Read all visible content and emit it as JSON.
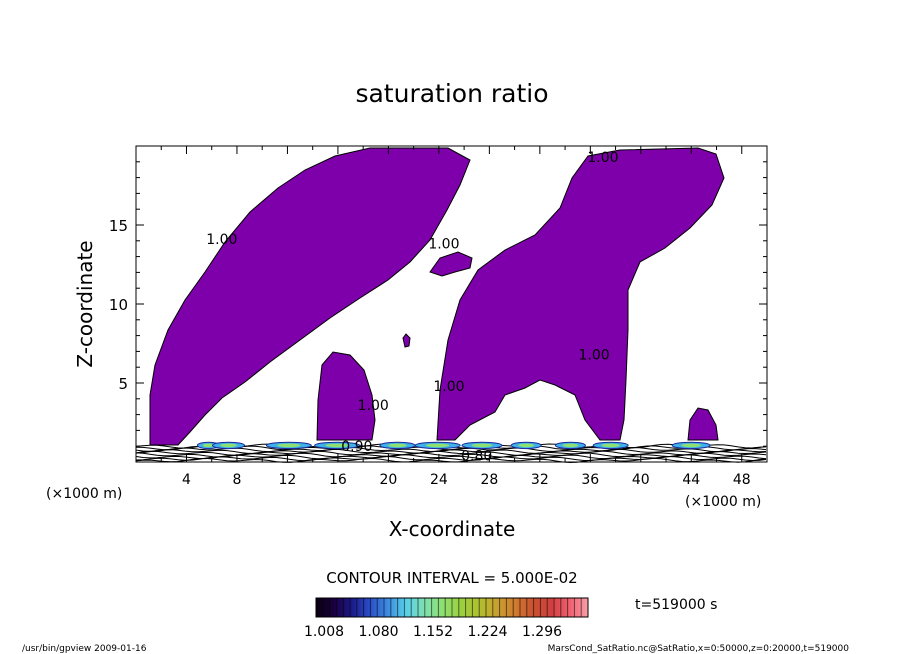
{
  "footer": {
    "left": "/usr/bin/gpview   2009-01-16",
    "right": "MarsCond_SatRatio.nc@SatRatio,x=0:50000,z=0:20000,t=519000"
  },
  "chart_data": {
    "type": "contour",
    "title": "saturation ratio",
    "xlabel": "X-coordinate",
    "ylabel": "Z-coordinate",
    "x_unit_left": "(×1000 m)",
    "x_unit_right": "(×1000 m)",
    "xlim": [
      0,
      50
    ],
    "ylim": [
      0,
      20
    ],
    "x_ticks": [
      4,
      8,
      12,
      16,
      20,
      24,
      28,
      32,
      36,
      40,
      44,
      48
    ],
    "y_ticks": [
      5,
      10,
      15
    ],
    "contour_interval_text": "CONTOUR INTERVAL = 5.000E-02",
    "time_text": "t=519000 s",
    "colorbar": {
      "tick_labels": [
        "1.008",
        "1.080",
        "1.152",
        "1.224",
        "1.296"
      ],
      "colors": [
        "#0a0010",
        "#1a0040",
        "#1c1a8a",
        "#2a4fc8",
        "#3c8fe0",
        "#5ad0e8",
        "#7fe0b0",
        "#8ee070",
        "#9ad040",
        "#b0c030",
        "#c8a030",
        "#d07a30",
        "#c85030",
        "#d04040",
        "#f06070",
        "#f8a0a8"
      ]
    },
    "fill_color": "#7d00aa",
    "contour_labels": [
      {
        "text": "1.00",
        "x": 6.8,
        "y": 13.8
      },
      {
        "text": "1.00",
        "x": 24.4,
        "y": 13.5
      },
      {
        "text": "1.00",
        "x": 37.0,
        "y": 19.0
      },
      {
        "text": "1.00",
        "x": 36.3,
        "y": 6.5
      },
      {
        "text": "1.00",
        "x": 18.8,
        "y": 3.3
      },
      {
        "text": "1.00",
        "x": 24.8,
        "y": 4.5
      },
      {
        "text": "0.90",
        "x": 17.5,
        "y": 0.7
      },
      {
        "text": "0.80",
        "x": 27.0,
        "y": 0.1
      }
    ]
  }
}
